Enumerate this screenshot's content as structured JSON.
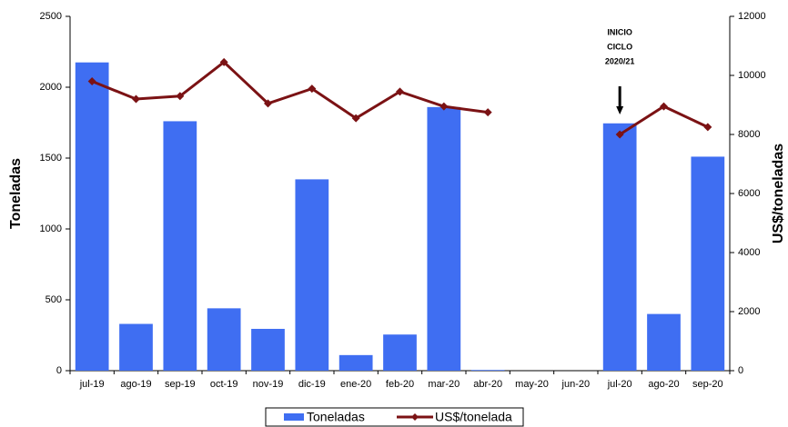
{
  "chart_data": {
    "type": "bar_line",
    "categories": [
      "jul-19",
      "ago-19",
      "sep-19",
      "oct-19",
      "nov-19",
      "dic-19",
      "ene-20",
      "feb-20",
      "mar-20",
      "abr-20",
      "may-20",
      "jun-20",
      "jul-20",
      "ago-20",
      "sep-20"
    ],
    "series": [
      {
        "name": "Toneladas",
        "type": "bar",
        "color": "#3f6ef2",
        "values": [
          2175,
          330,
          1760,
          440,
          295,
          1350,
          110,
          255,
          1860,
          5,
          null,
          null,
          1745,
          400,
          1510
        ]
      },
      {
        "name": "US$/tonelada",
        "type": "line",
        "axis": "y2",
        "color": "#7b1214",
        "values": [
          9800,
          9200,
          9300,
          10450,
          9050,
          9550,
          8550,
          9450,
          8950,
          8750,
          null,
          null,
          8000,
          8950,
          8250
        ]
      }
    ],
    "ylabel": "Toneladas",
    "y2label": "US$/toneladas",
    "ylim": [
      0,
      2500
    ],
    "yticks": [
      0,
      500,
      1000,
      1500,
      2000,
      2500
    ],
    "y2lim": [
      0,
      12000
    ],
    "y2ticks": [
      0,
      2000,
      4000,
      6000,
      8000,
      10000,
      12000
    ],
    "annotation": {
      "category": "jul-20",
      "lines": [
        "INICIO",
        "CICLO",
        "2020/21"
      ]
    },
    "legend": "bottom"
  }
}
